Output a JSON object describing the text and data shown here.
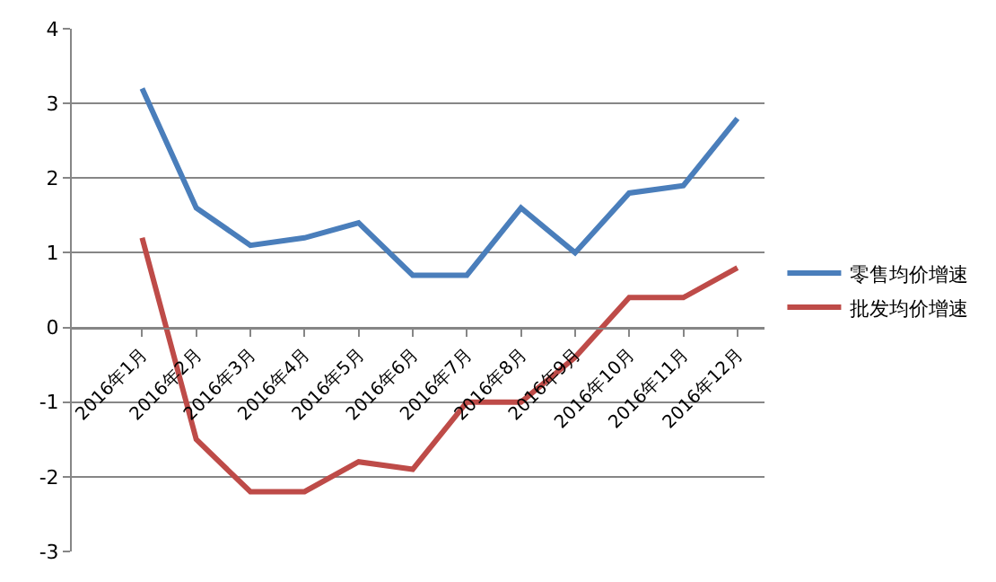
{
  "chart_data": {
    "type": "line",
    "categories": [
      "2016年1月",
      "2016年2月",
      "2016年3月",
      "2016年4月",
      "2016年5月",
      "2016年6月",
      "2016年7月",
      "2016年8月",
      "2016年9月",
      "2016年10月",
      "2016年11月",
      "2016年12月"
    ],
    "series": [
      {
        "name": "零售均价增速",
        "color": "#4a7ebb",
        "values": [
          3.2,
          1.6,
          1.1,
          1.2,
          1.4,
          0.7,
          0.7,
          1.6,
          1.0,
          1.8,
          1.9,
          2.8
        ]
      },
      {
        "name": "批发均价增速",
        "color": "#be4b48",
        "values": [
          1.2,
          -1.5,
          -2.2,
          -2.2,
          -1.8,
          -1.9,
          -1.0,
          -1.0,
          -0.4,
          0.4,
          0.4,
          0.8
        ]
      }
    ],
    "ylim": [
      -3,
      4
    ],
    "yticks": [
      -3,
      -2,
      -1,
      0,
      1,
      2,
      3,
      4
    ],
    "grid": "y",
    "legend": "right",
    "marker": "none",
    "line_style": "solid"
  }
}
